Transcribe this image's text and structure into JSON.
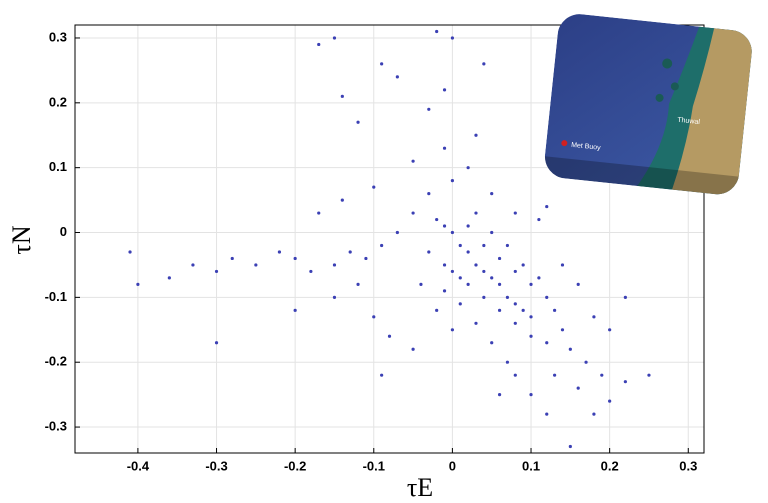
{
  "chart_data": {
    "type": "scatter",
    "xlabel": "τE",
    "ylabel": "τN",
    "x": [
      0,
      0.01,
      0.02,
      0.03,
      0.04,
      0.05,
      0.06,
      0.07,
      0.08,
      0.09,
      0.1,
      -0.02,
      -0.01,
      0.02,
      0.04,
      0.06,
      0.08,
      0.1,
      0.12,
      0,
      0.02,
      0.04,
      0.06,
      0.08,
      0.1,
      -0.03,
      -0.01,
      0.01,
      0.03,
      0.05,
      0.07,
      0.09,
      0.11,
      0.13,
      0.14,
      0.15,
      0.17,
      0.12,
      0.13,
      0.16,
      0.19,
      0.2,
      0.22,
      0.25,
      0.18,
      0.1,
      0.07,
      0.05,
      0.03,
      0.01,
      -0.01,
      -0.03,
      0,
      0.02,
      -0.01,
      0.03,
      0.05,
      0.08,
      0.11,
      0.12,
      -0.05,
      -0.07,
      -0.09,
      -0.11,
      -0.13,
      -0.15,
      -0.18,
      -0.2,
      -0.22,
      -0.25,
      -0.28,
      -0.3,
      -0.33,
      -0.36,
      -0.41,
      -0.4,
      -0.3,
      -0.2,
      -0.15,
      -0.1,
      -0.08,
      -0.09,
      -0.05,
      -0.12,
      -0.17,
      -0.14,
      -0.1,
      -0.05,
      -0.12,
      -0.14,
      -0.17,
      -0.15,
      -0.09,
      -0.07,
      -0.03,
      -0.02,
      0,
      0.04,
      -0.01,
      0.14,
      0.16,
      0.18,
      0.2,
      0.22,
      0.15,
      0.12,
      0.08,
      0.06,
      -0.02,
      -0.04,
      0
    ],
    "values": [
      0,
      -0.02,
      -0.03,
      -0.05,
      -0.06,
      -0.07,
      -0.08,
      -0.1,
      -0.11,
      -0.12,
      -0.13,
      0.02,
      0.01,
      0.01,
      -0.02,
      -0.04,
      -0.06,
      -0.08,
      -0.1,
      -0.06,
      -0.08,
      -0.1,
      -0.12,
      -0.14,
      -0.16,
      -0.03,
      -0.05,
      -0.07,
      0.03,
      0,
      -0.02,
      -0.05,
      -0.07,
      -0.12,
      -0.15,
      -0.18,
      -0.2,
      -0.17,
      -0.22,
      -0.24,
      -0.22,
      -0.26,
      -0.23,
      -0.22,
      -0.28,
      -0.25,
      -0.2,
      -0.17,
      -0.14,
      -0.11,
      -0.09,
      0.06,
      0.08,
      0.1,
      0.13,
      0.15,
      0.06,
      0.03,
      0.02,
      0.04,
      0.03,
      0,
      -0.02,
      -0.04,
      -0.03,
      -0.05,
      -0.06,
      -0.04,
      -0.03,
      -0.05,
      -0.04,
      -0.06,
      -0.05,
      -0.07,
      -0.03,
      -0.08,
      -0.17,
      -0.12,
      -0.1,
      -0.13,
      -0.16,
      -0.22,
      -0.18,
      -0.08,
      0.03,
      0.05,
      0.07,
      0.11,
      0.17,
      0.21,
      0.29,
      0.3,
      0.26,
      0.24,
      0.19,
      0.31,
      0.3,
      0.26,
      0.22,
      -0.05,
      -0.08,
      -0.13,
      -0.15,
      -0.1,
      -0.33,
      -0.28,
      -0.22,
      -0.25,
      -0.12,
      -0.08,
      -0.15
    ],
    "color": "#3b40b4",
    "xlim": [
      -0.48,
      0.32
    ],
    "ylim": [
      -0.34,
      0.32
    ],
    "xticks": [
      -0.4,
      -0.3,
      -0.2,
      -0.1,
      0,
      0.1,
      0.2,
      0.3
    ],
    "yticks": [
      -0.3,
      -0.2,
      -0.1,
      0,
      0.1,
      0.2,
      0.3
    ],
    "grid": true,
    "annotations": [
      "Met Buoy",
      "Thuwal"
    ]
  }
}
